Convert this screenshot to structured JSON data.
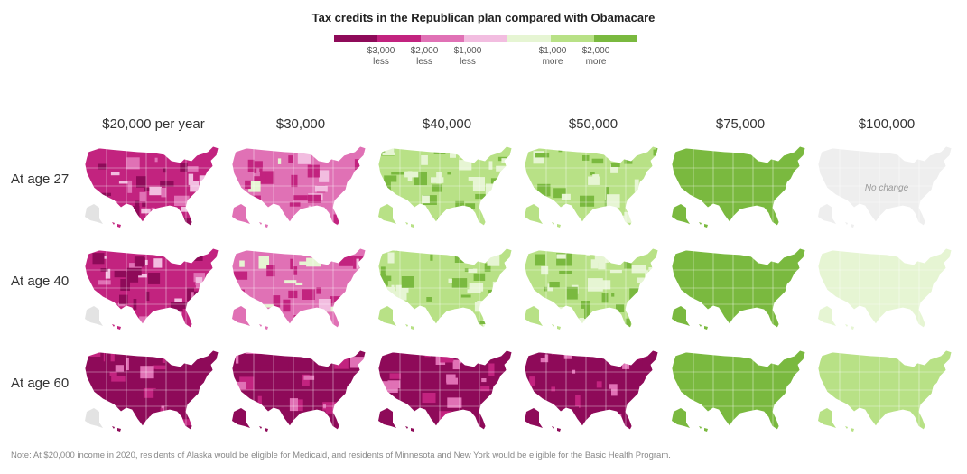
{
  "chart_data": {
    "type": "heatmap",
    "title": "Tax credits in the Republican plan compared with Obamacare",
    "legend": {
      "colors": [
        "#8e0a59",
        "#c2237f",
        "#e071b5",
        "#f2bde0",
        "#e6f5d3",
        "#b8e186",
        "#7ab93f"
      ],
      "labels": [
        {
          "line1": "$3,000",
          "line2": "less"
        },
        {
          "line1": "$2,000",
          "line2": "less"
        },
        {
          "line1": "$1,000",
          "line2": "less"
        },
        {
          "line1": "$1,000",
          "line2": "more"
        },
        {
          "line1": "$2,000",
          "line2": "more"
        }
      ]
    },
    "columns": [
      "$20,000 per year",
      "$30,000",
      "$40,000",
      "$50,000",
      "$75,000",
      "$100,000"
    ],
    "rows": [
      "At age 27",
      "At age 40",
      "At age 60"
    ],
    "no_change_label": "No change",
    "predominant_change_usd": [
      [
        -2000,
        -1000,
        1000,
        1000,
        2000,
        0
      ],
      [
        -2000,
        -1000,
        1000,
        1000,
        2000,
        500
      ],
      [
        -3000,
        -3000,
        -3000,
        -3000,
        2000,
        1000
      ]
    ],
    "colors": {
      "no_change": "#eeeeee",
      "alaska_medicaid": "#e3e3e3"
    }
  },
  "note": "Note: At $20,000 income in 2020, residents of Alaska would be eligible for Medicaid, and residents of Minnesota and New York would be eligible for the Basic Health Program."
}
